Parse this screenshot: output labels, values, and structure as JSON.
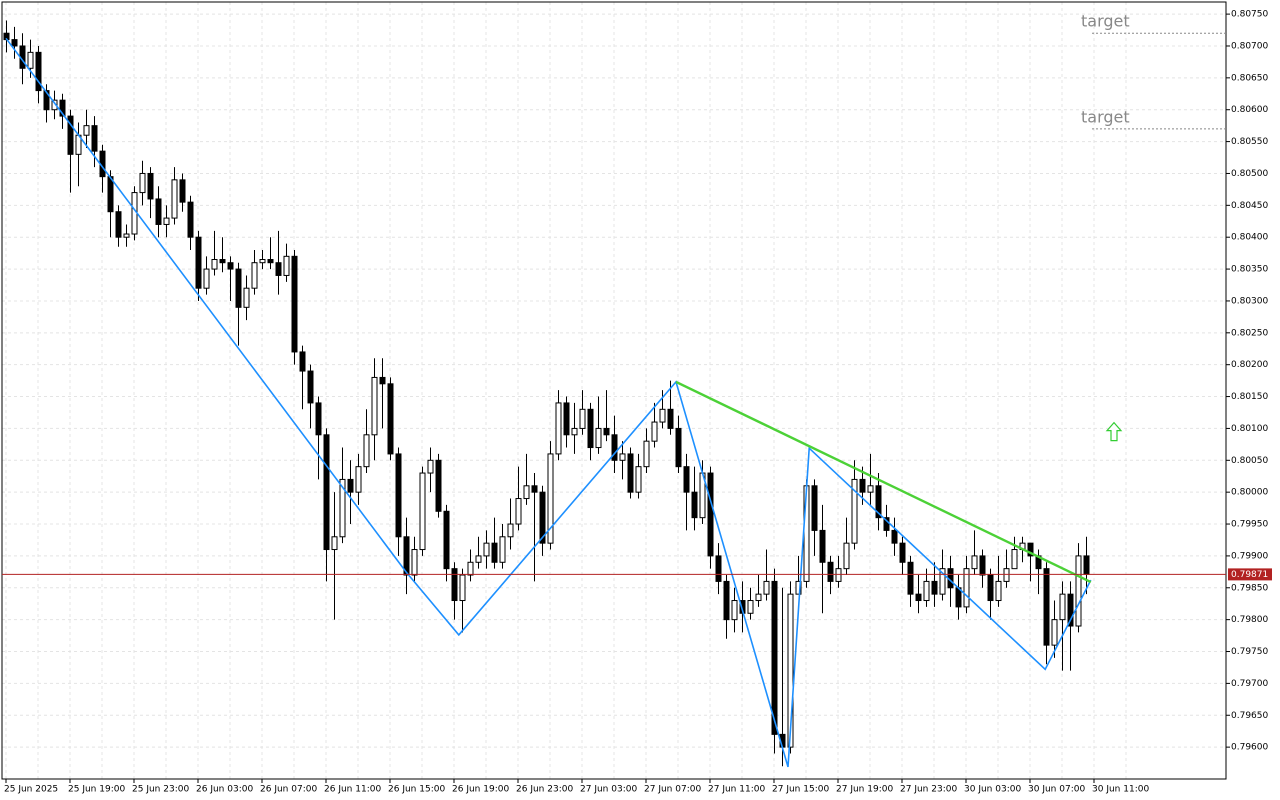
{
  "chart_data": {
    "type": "candlestick",
    "xlim": [
      -0.5,
      152.5
    ],
    "ylim": [
      0.7955,
      0.80769
    ],
    "xticks": [
      {
        "value": 0,
        "label": "25 Jun 2025"
      },
      {
        "value": 8,
        "label": "25 Jun 19:00"
      },
      {
        "value": 16,
        "label": "25 Jun 23:00"
      },
      {
        "value": 24,
        "label": "26 Jun 03:00"
      },
      {
        "value": 32,
        "label": "26 Jun 07:00"
      },
      {
        "value": 40,
        "label": "26 Jun 11:00"
      },
      {
        "value": 48,
        "label": "26 Jun 15:00"
      },
      {
        "value": 56,
        "label": "26 Jun 19:00"
      },
      {
        "value": 64,
        "label": "26 Jun 23:00"
      },
      {
        "value": 72,
        "label": "27 Jun 03:00"
      },
      {
        "value": 80,
        "label": "27 Jun 07:00"
      },
      {
        "value": 88,
        "label": "27 Jun 11:00"
      },
      {
        "value": 96,
        "label": "27 Jun 15:00"
      },
      {
        "value": 104,
        "label": "27 Jun 19:00"
      },
      {
        "value": 112,
        "label": "27 Jun 23:00"
      },
      {
        "value": 120,
        "label": "30 Jun 03:00"
      },
      {
        "value": 128,
        "label": "30 Jun 07:00"
      },
      {
        "value": 136,
        "label": "30 Jun 11:00"
      }
    ],
    "yticks": [
      {
        "value": 0.8075,
        "label": "0.80750"
      },
      {
        "value": 0.807,
        "label": "0.80700"
      },
      {
        "value": 0.8065,
        "label": "0.80650"
      },
      {
        "value": 0.806,
        "label": "0.80600"
      },
      {
        "value": 0.8055,
        "label": "0.80550"
      },
      {
        "value": 0.805,
        "label": "0.80500"
      },
      {
        "value": 0.8045,
        "label": "0.80450"
      },
      {
        "value": 0.804,
        "label": "0.80400"
      },
      {
        "value": 0.8035,
        "label": "0.80350"
      },
      {
        "value": 0.803,
        "label": "0.80300"
      },
      {
        "value": 0.8025,
        "label": "0.80250"
      },
      {
        "value": 0.802,
        "label": "0.80200"
      },
      {
        "value": 0.8015,
        "label": "0.80150"
      },
      {
        "value": 0.801,
        "label": "0.80100"
      },
      {
        "value": 0.8005,
        "label": "0.80050"
      },
      {
        "value": 0.8,
        "label": "0.80000"
      },
      {
        "value": 0.7995,
        "label": "0.79950"
      },
      {
        "value": 0.799,
        "label": "0.79900"
      },
      {
        "value": 0.7985,
        "label": "0.79850"
      },
      {
        "value": 0.798,
        "label": "0.79800"
      },
      {
        "value": 0.7975,
        "label": "0.79750"
      },
      {
        "value": 0.797,
        "label": "0.79700"
      },
      {
        "value": 0.7965,
        "label": "0.79650"
      },
      {
        "value": 0.796,
        "label": "0.79600"
      }
    ],
    "grid": true,
    "up_color": "#ffffff",
    "down_color": "#000000",
    "open": [
      0.8072,
      0.8071,
      0.807,
      0.80665,
      0.8069,
      0.8063,
      0.806,
      0.80615,
      0.8059,
      0.8053,
      0.8056,
      0.80575,
      0.80535,
      0.80495,
      0.8044,
      0.804,
      0.80405,
      0.8047,
      0.805,
      0.8046,
      0.8042,
      0.8043,
      0.8049,
      0.80455,
      0.804,
      0.8032,
      0.8035,
      0.80365,
      0.8036,
      0.8035,
      0.8029,
      0.8032,
      0.8036,
      0.80365,
      0.8036,
      0.8034,
      0.8037,
      0.8022,
      0.8019,
      0.8014,
      0.8009,
      0.7991,
      0.7993,
      0.8002,
      0.8,
      0.8004,
      0.8009,
      0.8018,
      0.8017,
      0.8006,
      0.7993,
      0.7987,
      0.7991,
      0.8003,
      0.8005,
      0.7997,
      0.7988,
      0.7983,
      0.7987,
      0.7989,
      0.799,
      0.7992,
      0.7989,
      0.7993,
      0.7995,
      0.7999,
      0.8001,
      0.8,
      0.7992,
      0.8006,
      0.8014,
      0.8009,
      0.801,
      0.8013,
      0.8007,
      0.801,
      0.8009,
      0.8005,
      0.8006,
      0.8,
      0.8004,
      0.8008,
      0.8011,
      0.8013,
      0.801,
      0.8004,
      0.8,
      0.7996,
      0.8003,
      0.799,
      0.7986,
      0.798,
      0.7983,
      0.7981,
      0.7983,
      0.7984,
      0.7986,
      0.7962,
      0.796,
      0.7984,
      0.7986,
      0.8001,
      0.7994,
      0.7989,
      0.7986,
      0.7988,
      0.7992,
      0.8002,
      0.8,
      0.8001,
      0.7996,
      0.7994,
      0.7992,
      0.7989,
      0.7984,
      0.7983,
      0.7986,
      0.7984,
      0.7988,
      0.7985,
      0.7982,
      0.7988,
      0.799,
      0.7987,
      0.7983,
      0.7986,
      0.7988,
      0.7991,
      0.7992,
      0.799,
      0.7988,
      0.7976,
      0.798,
      0.7984,
      0.7979,
      0.799
    ],
    "high": [
      0.8074,
      0.8073,
      0.8072,
      0.8071,
      0.807,
      0.8064,
      0.8063,
      0.80625,
      0.806,
      0.8058,
      0.806,
      0.8059,
      0.80545,
      0.80505,
      0.8045,
      0.8042,
      0.8048,
      0.8052,
      0.8051,
      0.8048,
      0.8045,
      0.8051,
      0.805,
      0.80465,
      0.8041,
      0.8037,
      0.8041,
      0.804,
      0.8037,
      0.8036,
      0.8034,
      0.8038,
      0.8038,
      0.804,
      0.8041,
      0.8039,
      0.8038,
      0.8023,
      0.802,
      0.8015,
      0.801,
      0.8,
      0.8007,
      0.8005,
      0.8006,
      0.8013,
      0.8021,
      0.8021,
      0.8018,
      0.8007,
      0.7996,
      0.7993,
      0.8004,
      0.8007,
      0.8006,
      0.7998,
      0.7989,
      0.7988,
      0.7991,
      0.7993,
      0.7994,
      0.7996,
      0.7995,
      0.7999,
      0.8004,
      0.8006,
      0.8003,
      0.8001,
      0.8008,
      0.8016,
      0.8015,
      0.8014,
      0.8016,
      0.8014,
      0.8015,
      0.8016,
      0.8012,
      0.8008,
      0.8007,
      0.8006,
      0.801,
      0.8014,
      0.8016,
      0.80175,
      0.8012,
      0.8006,
      0.8004,
      0.8005,
      0.8004,
      0.7992,
      0.7987,
      0.7985,
      0.7986,
      0.7985,
      0.7987,
      0.7991,
      0.7988,
      0.7985,
      0.7986,
      0.799,
      0.8002,
      0.8002,
      0.7998,
      0.799,
      0.799,
      0.7996,
      0.8005,
      0.8004,
      0.8006,
      0.8003,
      0.7998,
      0.7996,
      0.7993,
      0.799,
      0.7987,
      0.7988,
      0.7989,
      0.7991,
      0.799,
      0.7987,
      0.799,
      0.7994,
      0.7991,
      0.7988,
      0.799,
      0.7991,
      0.7993,
      0.7993,
      0.7992,
      0.7991,
      0.7989,
      0.7983,
      0.7986,
      0.7986,
      0.7992,
      0.7993
    ],
    "low": [
      0.8069,
      0.8068,
      0.8064,
      0.8065,
      0.8061,
      0.8058,
      0.80585,
      0.8057,
      0.8047,
      0.8048,
      0.8054,
      0.8051,
      0.8047,
      0.804,
      0.80385,
      0.80385,
      0.80395,
      0.8045,
      0.8043,
      0.804,
      0.804,
      0.8042,
      0.8044,
      0.8038,
      0.803,
      0.8031,
      0.8034,
      0.80345,
      0.803,
      0.8023,
      0.8027,
      0.8031,
      0.8035,
      0.8035,
      0.8031,
      0.8033,
      0.802,
      0.8013,
      0.801,
      0.8002,
      0.7986,
      0.798,
      0.7992,
      0.7995,
      0.7998,
      0.8003,
      0.8005,
      0.801,
      0.8005,
      0.799,
      0.7984,
      0.7986,
      0.799,
      0.8,
      0.7996,
      0.7986,
      0.798,
      0.7978,
      0.7986,
      0.7988,
      0.7988,
      0.7988,
      0.7988,
      0.7991,
      0.7994,
      0.7998,
      0.7986,
      0.799,
      0.7991,
      0.8005,
      0.8007,
      0.8006,
      0.8009,
      0.8005,
      0.8006,
      0.8008,
      0.8003,
      0.8002,
      0.7999,
      0.7999,
      0.8003,
      0.8007,
      0.801,
      0.8009,
      0.8003,
      0.7994,
      0.7994,
      0.7995,
      0.7988,
      0.7984,
      0.7977,
      0.7978,
      0.7978,
      0.798,
      0.7982,
      0.7983,
      0.7959,
      0.7957,
      0.7959,
      0.7984,
      0.7985,
      0.799,
      0.7981,
      0.7984,
      0.7985,
      0.7987,
      0.7991,
      0.7998,
      0.7998,
      0.7994,
      0.7993,
      0.799,
      0.7987,
      0.7982,
      0.7981,
      0.7982,
      0.7982,
      0.7983,
      0.7982,
      0.798,
      0.7981,
      0.7987,
      0.7985,
      0.798,
      0.7982,
      0.7985,
      0.7988,
      0.7989,
      0.7986,
      0.7984,
      0.7973,
      0.7974,
      0.7972,
      0.7972,
      0.7978,
      0.7984
    ],
    "close": [
      0.8071,
      0.807,
      0.80665,
      0.8069,
      0.8063,
      0.806,
      0.80615,
      0.8059,
      0.8053,
      0.8056,
      0.80575,
      0.80535,
      0.80495,
      0.8044,
      0.804,
      0.80405,
      0.8047,
      0.805,
      0.8046,
      0.8042,
      0.8043,
      0.8049,
      0.80455,
      0.804,
      0.8032,
      0.8035,
      0.80365,
      0.8036,
      0.8035,
      0.8029,
      0.8032,
      0.8036,
      0.80365,
      0.8036,
      0.8034,
      0.8037,
      0.8022,
      0.8019,
      0.8014,
      0.8009,
      0.7991,
      0.7993,
      0.8002,
      0.8,
      0.8004,
      0.8009,
      0.8018,
      0.8017,
      0.8006,
      0.7993,
      0.7987,
      0.7991,
      0.8003,
      0.8005,
      0.7997,
      0.7988,
      0.7983,
      0.7987,
      0.7989,
      0.799,
      0.7992,
      0.7989,
      0.7993,
      0.7995,
      0.7999,
      0.8001,
      0.8,
      0.7992,
      0.8006,
      0.8014,
      0.8009,
      0.801,
      0.8013,
      0.8007,
      0.801,
      0.8009,
      0.8005,
      0.8006,
      0.8,
      0.8004,
      0.8008,
      0.8011,
      0.8013,
      0.801,
      0.8004,
      0.8,
      0.7996,
      0.8003,
      0.799,
      0.7986,
      0.798,
      0.7983,
      0.7981,
      0.7983,
      0.7984,
      0.7986,
      0.7962,
      0.796,
      0.7984,
      0.7986,
      0.8001,
      0.7994,
      0.7989,
      0.7986,
      0.7988,
      0.7992,
      0.8002,
      0.8,
      0.8001,
      0.7996,
      0.7994,
      0.7992,
      0.7989,
      0.7984,
      0.7983,
      0.7986,
      0.7984,
      0.7988,
      0.7985,
      0.7982,
      0.7988,
      0.799,
      0.7987,
      0.7983,
      0.7986,
      0.7988,
      0.7991,
      0.7992,
      0.799,
      0.7988,
      0.7976,
      0.798,
      0.7984,
      0.7979,
      0.799,
      0.79871
    ],
    "zigzag": {
      "color": "#1e90ff",
      "x": [
        0,
        50,
        56.6,
        83.75,
        97.75,
        100.4,
        129.9,
        135.6
      ],
      "y": [
        0.80712,
        0.79875,
        0.79776,
        0.80173,
        0.79569,
        0.80069,
        0.79722,
        0.79862
      ]
    },
    "trendline": {
      "color": "#4cd137",
      "x": [
        83.75,
        135.6
      ],
      "y": [
        0.80173,
        0.79859
      ]
    },
    "current_price": {
      "value": 0.79871,
      "color": "#b22222"
    },
    "targets": [
      {
        "label": "target",
        "level": 0.8072
      },
      {
        "label": "target",
        "level": 0.8057
      }
    ],
    "arrow": {
      "direction": "up",
      "x": 138.5,
      "y": 0.80095,
      "color": "#32cd32"
    }
  }
}
